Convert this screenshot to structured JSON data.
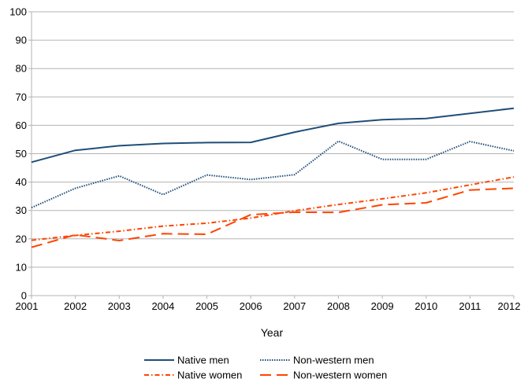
{
  "chart_data": {
    "type": "line",
    "title": "",
    "xlabel": "Year",
    "ylabel": "",
    "ylim": [
      0,
      100
    ],
    "yticks": [
      0,
      10,
      20,
      30,
      40,
      50,
      60,
      70,
      80,
      90,
      100
    ],
    "grid": "horizontal",
    "legend_position": "bottom",
    "x": [
      2001,
      2002,
      2003,
      2004,
      2005,
      2006,
      2007,
      2008,
      2009,
      2010,
      2011,
      2012
    ],
    "series": [
      {
        "name": "Native men",
        "color": "#1f4e79",
        "style": "solid",
        "values": [
          47,
          51.2,
          52.8,
          53.6,
          53.9,
          54,
          57.6,
          60.7,
          62,
          62.4,
          64.2,
          66
        ]
      },
      {
        "name": "Non-western men",
        "color": "#1f4e79",
        "style": "dotted",
        "values": [
          31,
          37.8,
          42.2,
          35.6,
          42.5,
          40.9,
          42.6,
          54.4,
          48,
          48,
          54.3,
          51
        ]
      },
      {
        "name": "Native women",
        "color": "#ff4500",
        "style": "dashdot",
        "values": [
          19.5,
          21.2,
          22.7,
          24.5,
          25.5,
          27.3,
          29.9,
          32.1,
          34.1,
          36.2,
          39,
          41.8
        ]
      },
      {
        "name": "Non-western women",
        "color": "#ff4500",
        "style": "longdash",
        "values": [
          17,
          21.4,
          19.4,
          21.8,
          21.6,
          28.5,
          29.4,
          29.3,
          32,
          32.7,
          37.2,
          37.8
        ]
      }
    ]
  }
}
